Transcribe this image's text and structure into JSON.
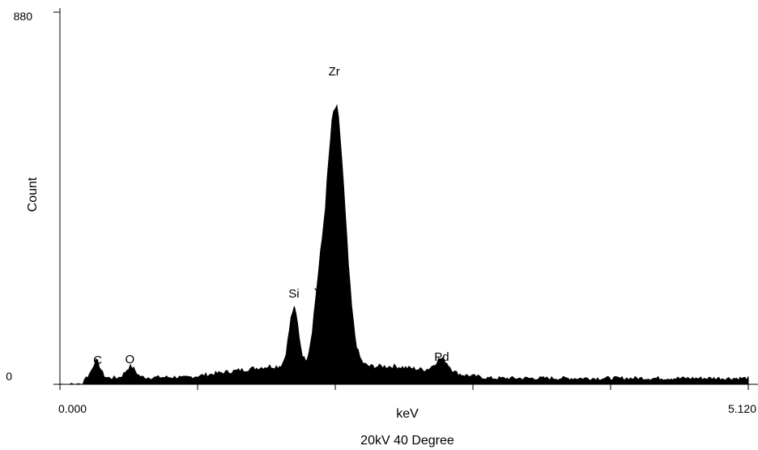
{
  "chart_data": {
    "type": "area",
    "title": "",
    "xlabel": "keV",
    "ylabel": "Count",
    "footer": "20kV 40 Degree",
    "xlim": [
      0.0,
      5.12
    ],
    "ylim": [
      0,
      880
    ],
    "x_tick_labels": [
      {
        "x": 0.0,
        "label": "0.000"
      },
      {
        "x": 5.12,
        "label": "5.120"
      }
    ],
    "x_minor_ticks": [
      0.0,
      1.024,
      2.048,
      3.072,
      4.096,
      5.12
    ],
    "y_tick_labels": [
      {
        "y": 0,
        "label": "0"
      },
      {
        "y": 880,
        "label": "880"
      }
    ],
    "grid": false,
    "legend": "none",
    "fill_color": "#000000",
    "peak_labels": [
      {
        "element": "C",
        "x": 0.28,
        "y": 48
      },
      {
        "element": "O",
        "x": 0.52,
        "y": 50
      },
      {
        "element": "Si",
        "x": 1.74,
        "y": 205
      },
      {
        "element": "Y",
        "x": 1.92,
        "y": 208
      },
      {
        "element": "Zr",
        "x": 2.04,
        "y": 730
      },
      {
        "element": "Pd",
        "x": 2.84,
        "y": 56
      }
    ],
    "peaks": [
      {
        "center": 0.27,
        "height": 40,
        "width": 0.03
      },
      {
        "center": 0.525,
        "height": 26,
        "width": 0.035
      },
      {
        "center": 1.74,
        "height": 135,
        "width": 0.035
      },
      {
        "center": 1.92,
        "height": 105,
        "width": 0.04
      },
      {
        "center": 2.05,
        "height": 610,
        "width": 0.07
      },
      {
        "center": 2.84,
        "height": 32,
        "width": 0.05
      }
    ],
    "background_levels": {
      "low": 14,
      "mid": 42,
      "high": 14
    }
  }
}
